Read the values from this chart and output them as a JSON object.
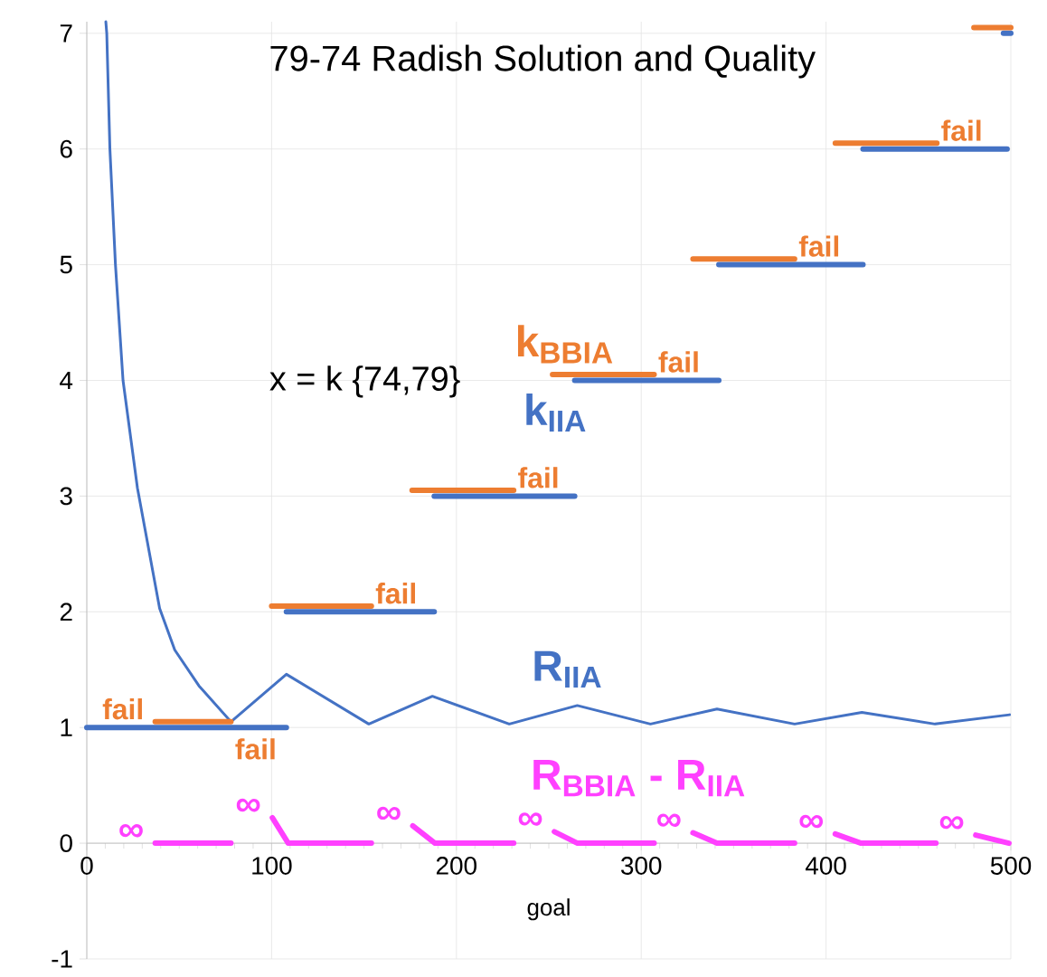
{
  "chart_data": {
    "type": "line",
    "title": "79-74 Radish Solution and Quality",
    "xlabel": "goal",
    "xlim": [
      0,
      500
    ],
    "ylim": [
      -1,
      7.1
    ],
    "xticks": [
      0,
      100,
      200,
      300,
      400,
      500
    ],
    "yticks": [
      -1,
      0,
      1,
      2,
      3,
      4,
      5,
      6,
      7
    ],
    "grid": true,
    "marker": "none",
    "line_style": "solid",
    "annotations": [
      "x = k {74,79}"
    ],
    "series": [
      {
        "name": "R$_{IIA}$",
        "color": "#4472c4",
        "x": [
          10.3,
          10.8,
          12.5,
          15.5,
          19.6,
          27.4,
          39.4,
          47.6,
          60.7,
          78,
          108,
          152.6,
          187,
          228.6,
          265.4,
          305,
          341,
          383,
          419.4,
          459,
          499.3
        ],
        "values": [
          7.1,
          7,
          6,
          5,
          4,
          3.07,
          2.03,
          1.67,
          1.36,
          1.05,
          1.46,
          1.03,
          1.27,
          1.03,
          1.19,
          1.03,
          1.16,
          1.03,
          1.13,
          1.03,
          1.11
        ]
      },
      {
        "name": "k$_{IIA}$",
        "color": "#4472c4",
        "x": [
          0,
          108,
          null,
          108,
          188,
          null,
          188,
          264,
          null,
          264,
          342,
          null,
          342,
          420,
          null,
          420,
          498,
          null,
          496,
          500
        ],
        "values": [
          1,
          1,
          null,
          2,
          2,
          null,
          3,
          3,
          null,
          4,
          4,
          null,
          5,
          5,
          null,
          6,
          6,
          null,
          7,
          7
        ]
      },
      {
        "name": "k$_{BBIA}$",
        "color": "#ed7d31",
        "x": [
          37,
          78,
          null,
          100,
          154,
          null,
          176,
          231,
          null,
          252,
          307,
          null,
          328,
          383,
          null,
          405,
          460,
          null,
          480,
          500
        ],
        "values": [
          1.05,
          1.05,
          null,
          2.05,
          2.05,
          null,
          3.05,
          3.05,
          null,
          4.05,
          4.05,
          null,
          5.05,
          5.05,
          null,
          6.05,
          6.05,
          null,
          7.05,
          7.05
        ],
        "value_labels": [
          "fail",
          "fail",
          null,
          null,
          "fail",
          null,
          null,
          "fail",
          null,
          null,
          "fail",
          null,
          null,
          "fail",
          null,
          null,
          "fail",
          null,
          null,
          null
        ]
      },
      {
        "name": "R$_{BBIA}$ - R$_{IIA}$",
        "color": "#ff40ff",
        "x": [
          37,
          78,
          null,
          100.4,
          109,
          154,
          null,
          176.4,
          188.4,
          231,
          null,
          253,
          265.5,
          307,
          null,
          328,
          341,
          383,
          null,
          405,
          419,
          459.5,
          null,
          481,
          499
        ],
        "values": [
          0,
          0,
          null,
          0.22,
          0,
          0,
          null,
          0.15,
          0,
          0,
          null,
          0.1,
          0,
          0,
          null,
          0.09,
          0,
          0,
          null,
          0.08,
          0,
          0,
          null,
          0.07,
          0
        ],
        "value_labels": [
          "∞",
          null,
          null,
          "∞",
          null,
          null,
          null,
          "∞",
          null,
          null,
          null,
          "∞",
          null,
          null,
          null,
          "∞",
          null,
          null,
          null,
          "∞",
          null,
          null,
          null,
          "∞",
          null
        ]
      }
    ]
  }
}
